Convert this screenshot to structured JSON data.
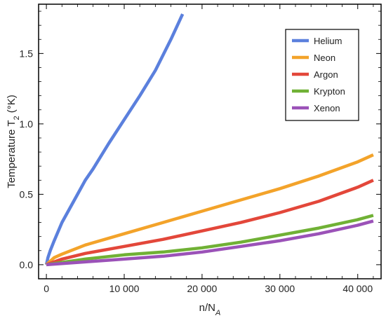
{
  "chart_data": {
    "type": "line",
    "xlabel": {
      "main": "n/N",
      "sub": "A"
    },
    "ylabel": {
      "main": "Temperature T",
      "sub": "2",
      "unit": " (°K)"
    },
    "xlim": [
      -1000,
      43000
    ],
    "ylim": [
      -0.1,
      1.85
    ],
    "x_ticks": [
      0,
      10000,
      20000,
      30000,
      40000
    ],
    "x_tick_labels": [
      "0",
      "10 000",
      "20 000",
      "30 000",
      "40 000"
    ],
    "y_ticks": [
      0.0,
      0.5,
      1.0,
      1.5
    ],
    "y_tick_labels": [
      "0.0",
      "0.5",
      "1.0",
      "1.5"
    ],
    "legend_position": "top-right",
    "series": [
      {
        "name": "Helium",
        "color": "#5b80dd",
        "x": [
          0,
          200,
          500,
          1000,
          2000,
          3000,
          4000,
          5000,
          6000,
          8000,
          10000,
          12000,
          14000,
          16000,
          17500
        ],
        "y": [
          0.0,
          0.05,
          0.1,
          0.17,
          0.3,
          0.4,
          0.5,
          0.6,
          0.68,
          0.86,
          1.03,
          1.2,
          1.38,
          1.6,
          1.78
        ]
      },
      {
        "name": "Neon",
        "color": "#f3a32a",
        "x": [
          0,
          1000,
          2000,
          5000,
          10000,
          15000,
          20000,
          25000,
          30000,
          35000,
          40000,
          42000
        ],
        "y": [
          0.0,
          0.05,
          0.075,
          0.14,
          0.22,
          0.3,
          0.38,
          0.46,
          0.54,
          0.63,
          0.73,
          0.78
        ]
      },
      {
        "name": "Argon",
        "color": "#e3473a",
        "x": [
          0,
          2000,
          5000,
          10000,
          15000,
          20000,
          25000,
          30000,
          35000,
          40000,
          42000
        ],
        "y": [
          0.0,
          0.04,
          0.08,
          0.13,
          0.18,
          0.24,
          0.3,
          0.37,
          0.45,
          0.55,
          0.6
        ]
      },
      {
        "name": "Krypton",
        "color": "#70b135",
        "x": [
          0,
          5000,
          10000,
          15000,
          20000,
          25000,
          30000,
          35000,
          40000,
          42000
        ],
        "y": [
          0.0,
          0.04,
          0.07,
          0.09,
          0.12,
          0.16,
          0.21,
          0.26,
          0.32,
          0.35
        ]
      },
      {
        "name": "Xenon",
        "color": "#9b52b8",
        "x": [
          0,
          5000,
          10000,
          15000,
          20000,
          25000,
          30000,
          35000,
          40000,
          42000
        ],
        "y": [
          0.0,
          0.02,
          0.04,
          0.06,
          0.09,
          0.13,
          0.17,
          0.22,
          0.28,
          0.31
        ]
      }
    ]
  }
}
